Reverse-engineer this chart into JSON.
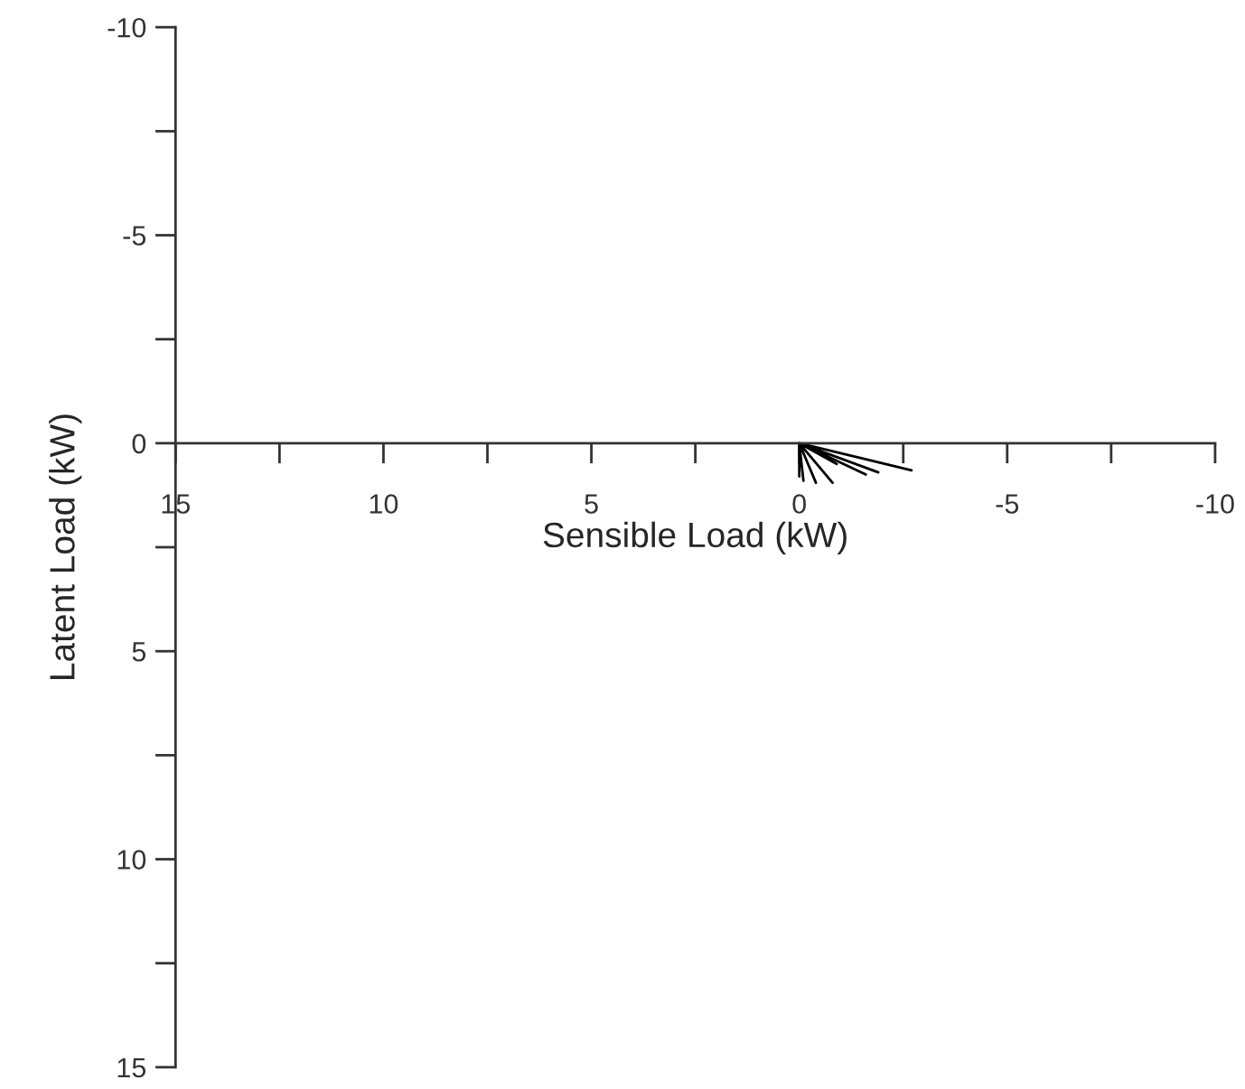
{
  "chart_data": {
    "type": "line",
    "xlabel": "Sensible Load (kW)",
    "ylabel": "Latent Load (kW)",
    "x": [
      0,
      -2.7,
      0,
      -1.9,
      0,
      -1.6,
      0,
      -0.9,
      0,
      -0.8,
      0,
      -0.4,
      0,
      -0.1,
      0,
      0
    ],
    "series": [
      {
        "color": "#000000",
        "values": [
          0,
          0.65,
          0,
          0.7,
          0,
          0.75,
          0,
          0.5,
          0,
          0.95,
          0,
          0.95,
          0,
          0.9,
          0,
          0.8
        ]
      }
    ],
    "xlim": [
      15,
      -10
    ],
    "ylim": [
      15,
      -10
    ],
    "xticks": [
      15,
      {
        "value": 12.5,
        "label": null
      },
      10,
      {
        "value": 7.5,
        "label": null
      },
      5,
      {
        "value": 2.5,
        "label": null
      },
      0,
      {
        "value": -2.5,
        "label": null
      },
      -5,
      {
        "value": -7.5,
        "label": null
      },
      -10
    ],
    "yticks": [
      -10,
      {
        "value": -7.5,
        "label": null
      },
      -5,
      {
        "value": -2.5,
        "label": null
      },
      0,
      {
        "value": 2.5,
        "label": null
      },
      5,
      {
        "value": 7.5,
        "label": null
      },
      10,
      {
        "value": 12.5,
        "label": null
      },
      15
    ],
    "grid": false,
    "marker": "none",
    "line_style": "solid"
  }
}
